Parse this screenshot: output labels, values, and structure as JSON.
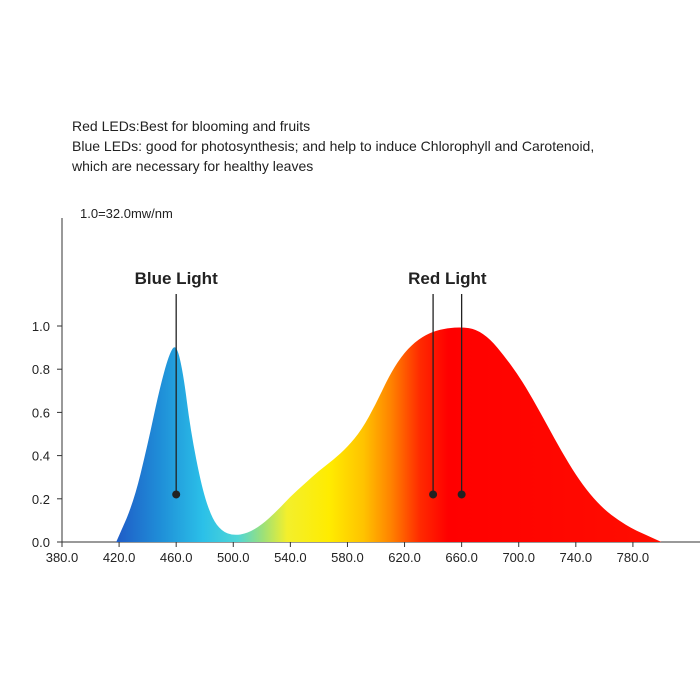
{
  "notes": {
    "line1": "Red LEDs:Best for blooming and fruits",
    "line2": "Blue LEDs: good for photosynthesis; and help to induce Chlorophyll and Carotenoid,",
    "line3": "which are necessary for healthy leaves"
  },
  "chart_data": {
    "type": "area",
    "title": "",
    "xlabel": "",
    "ylabel": "",
    "unit_note": "1.0=32.0mw/nm",
    "xlim": [
      380,
      820
    ],
    "ylim": [
      0,
      1.0
    ],
    "x_ticks": [
      "380.0",
      "420.0",
      "460.0",
      "500.0",
      "540.0",
      "580.0",
      "620.0",
      "660.0",
      "700.0",
      "740.0",
      "780.0"
    ],
    "y_ticks": [
      "0.0",
      "0.2",
      "0.4",
      "0.6",
      "0.8",
      "1.0"
    ],
    "grid": false,
    "series": [
      {
        "x": [
          418,
          430,
          440,
          448,
          455,
          460,
          465,
          470,
          478,
          485,
          492,
          500,
          510,
          520,
          530,
          540,
          550,
          560,
          570,
          580,
          590,
          600,
          610,
          620,
          630,
          640,
          650,
          660,
          670,
          680,
          690,
          700,
          710,
          720,
          730,
          740,
          750,
          760,
          770,
          780,
          790,
          800
        ],
        "y": [
          0.0,
          0.18,
          0.45,
          0.7,
          0.87,
          0.92,
          0.78,
          0.52,
          0.25,
          0.11,
          0.05,
          0.03,
          0.04,
          0.08,
          0.14,
          0.21,
          0.27,
          0.33,
          0.38,
          0.44,
          0.52,
          0.64,
          0.78,
          0.88,
          0.94,
          0.975,
          0.99,
          0.995,
          0.985,
          0.94,
          0.86,
          0.77,
          0.66,
          0.54,
          0.42,
          0.31,
          0.22,
          0.15,
          0.1,
          0.06,
          0.03,
          0.0
        ]
      }
    ],
    "annotations": [
      {
        "label": "Blue Light",
        "x": 460,
        "y": 0.22,
        "label_x": 460
      },
      {
        "label": "Red Light",
        "x": 640,
        "y": 0.22,
        "label_x": 650
      },
      {
        "label": "",
        "x": 660,
        "y": 0.22,
        "label_x": 650
      }
    ]
  }
}
